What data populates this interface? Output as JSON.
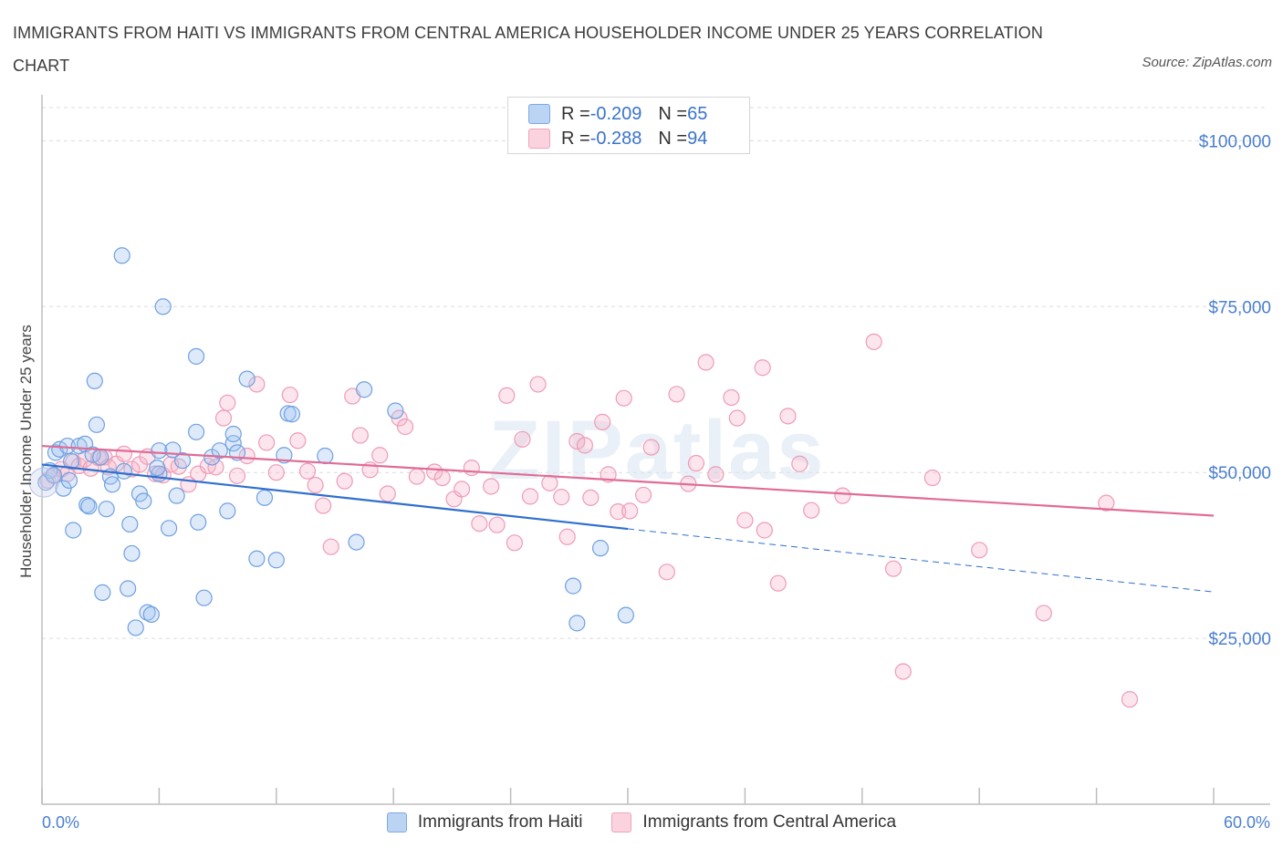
{
  "title": "IMMIGRANTS FROM HAITI VS IMMIGRANTS FROM CENTRAL AMERICA HOUSEHOLDER INCOME UNDER 25 YEARS CORRELATION CHART",
  "source": "Source: ZipAtlas.com",
  "watermark": "ZIPatlas",
  "legend_stats": [
    {
      "r_label": "R = ",
      "r_value": "-0.209",
      "n_label": "N = ",
      "n_value": "65",
      "color": "#a9c8f0"
    },
    {
      "r_label": "R = ",
      "r_value": "-0.288",
      "n_label": "N = ",
      "n_value": "94",
      "color": "#f6bccd"
    }
  ],
  "colors": {
    "haiti": "#6fa3e6",
    "central_america": "#ef8fae",
    "haiti_line": "#2f6fcf",
    "ca_line": "#e06c96",
    "tick_label": "#4a7fd0"
  },
  "chart_data": {
    "type": "scatter",
    "title": "IMMIGRANTS FROM HAITI VS IMMIGRANTS FROM CENTRAL AMERICA HOUSEHOLDER INCOME UNDER 25 YEARS CORRELATION CHART",
    "xlabel": "",
    "ylabel": "Householder Income Under 25 years",
    "xlim": [
      0,
      60
    ],
    "ylim": [
      0,
      105000
    ],
    "x_tick_labels": [
      "0.0%",
      "60.0%"
    ],
    "y_ticks": [
      25000,
      50000,
      75000,
      100000
    ],
    "y_tick_labels": [
      "$25,000",
      "$50,000",
      "$75,000",
      "$100,000"
    ],
    "grid": true,
    "legend_position": "bottom",
    "series": [
      {
        "name": "Immigrants from Haiti",
        "r": -0.209,
        "n": 65,
        "trend": {
          "x": [
            0,
            30
          ],
          "y": [
            51200,
            41500
          ]
        },
        "trend_dashed": {
          "x": [
            30,
            60
          ],
          "y": [
            41500,
            32000
          ]
        },
        "points": [
          [
            0.2,
            48500
          ],
          [
            0.4,
            50300
          ],
          [
            0.7,
            53000
          ],
          [
            0.9,
            53500
          ],
          [
            1.1,
            47600
          ],
          [
            1.3,
            54000
          ],
          [
            1.5,
            51700
          ],
          [
            1.9,
            54000
          ],
          [
            1.6,
            41300
          ],
          [
            2.2,
            54300
          ],
          [
            2.3,
            45100
          ],
          [
            2.4,
            44900
          ],
          [
            2.6,
            52700
          ],
          [
            2.7,
            63800
          ],
          [
            2.8,
            57200
          ],
          [
            3.0,
            52300
          ],
          [
            3.1,
            31900
          ],
          [
            3.3,
            44500
          ],
          [
            3.5,
            49400
          ],
          [
            3.6,
            48200
          ],
          [
            4.1,
            82700
          ],
          [
            4.2,
            50200
          ],
          [
            4.4,
            32500
          ],
          [
            4.5,
            42200
          ],
          [
            4.6,
            37800
          ],
          [
            4.8,
            26600
          ],
          [
            5.0,
            46800
          ],
          [
            5.2,
            45700
          ],
          [
            5.4,
            28900
          ],
          [
            5.6,
            28600
          ],
          [
            6.0,
            53300
          ],
          [
            6.0,
            49800
          ],
          [
            6.2,
            75000
          ],
          [
            6.5,
            41600
          ],
          [
            6.9,
            46500
          ],
          [
            7.2,
            51800
          ],
          [
            7.9,
            56100
          ],
          [
            7.9,
            67500
          ],
          [
            8.0,
            42500
          ],
          [
            8.3,
            31100
          ],
          [
            8.7,
            52300
          ],
          [
            9.1,
            53300
          ],
          [
            9.5,
            44200
          ],
          [
            9.8,
            54400
          ],
          [
            9.8,
            55800
          ],
          [
            10.0,
            53000
          ],
          [
            10.5,
            64100
          ],
          [
            11.0,
            37000
          ],
          [
            11.4,
            46200
          ],
          [
            12.0,
            36800
          ],
          [
            12.4,
            52600
          ],
          [
            12.6,
            58900
          ],
          [
            12.8,
            58800
          ],
          [
            14.5,
            52500
          ],
          [
            16.1,
            39500
          ],
          [
            16.5,
            62500
          ],
          [
            18.1,
            59300
          ],
          [
            27.2,
            32900
          ],
          [
            27.4,
            27300
          ],
          [
            28.6,
            38600
          ],
          [
            29.9,
            28500
          ],
          [
            0.6,
            49600
          ],
          [
            1.4,
            48800
          ],
          [
            5.9,
            50700
          ],
          [
            6.7,
            53400
          ]
        ]
      },
      {
        "name": "Immigrants from Central America",
        "r": -0.288,
        "n": 94,
        "trend": {
          "x": [
            0,
            60
          ],
          "y": [
            54000,
            43500
          ]
        },
        "points": [
          [
            0.3,
            48800
          ],
          [
            0.6,
            49500
          ],
          [
            1.0,
            50500
          ],
          [
            1.3,
            49800
          ],
          [
            1.6,
            51600
          ],
          [
            1.9,
            51000
          ],
          [
            2.2,
            52000
          ],
          [
            2.5,
            50600
          ],
          [
            2.9,
            52200
          ],
          [
            3.2,
            52300
          ],
          [
            3.4,
            50800
          ],
          [
            3.8,
            51300
          ],
          [
            4.2,
            52800
          ],
          [
            4.6,
            50500
          ],
          [
            5.0,
            51200
          ],
          [
            5.4,
            52400
          ],
          [
            5.8,
            49800
          ],
          [
            6.2,
            49600
          ],
          [
            6.6,
            51200
          ],
          [
            7.0,
            50900
          ],
          [
            7.5,
            48200
          ],
          [
            8.0,
            49800
          ],
          [
            8.5,
            51000
          ],
          [
            8.9,
            50800
          ],
          [
            9.3,
            58200
          ],
          [
            9.5,
            60500
          ],
          [
            10.0,
            49500
          ],
          [
            10.5,
            52500
          ],
          [
            11.0,
            63300
          ],
          [
            11.5,
            54500
          ],
          [
            12.0,
            50000
          ],
          [
            12.7,
            61700
          ],
          [
            13.1,
            54800
          ],
          [
            13.6,
            50200
          ],
          [
            14.0,
            48100
          ],
          [
            14.4,
            45000
          ],
          [
            14.8,
            38800
          ],
          [
            15.5,
            48700
          ],
          [
            15.9,
            61500
          ],
          [
            16.3,
            55600
          ],
          [
            16.8,
            50400
          ],
          [
            17.3,
            52600
          ],
          [
            17.7,
            46800
          ],
          [
            18.3,
            58200
          ],
          [
            18.6,
            56900
          ],
          [
            19.2,
            49400
          ],
          [
            20.1,
            50100
          ],
          [
            20.5,
            49200
          ],
          [
            21.1,
            46000
          ],
          [
            21.5,
            47500
          ],
          [
            22.0,
            50700
          ],
          [
            22.4,
            42300
          ],
          [
            23.0,
            47900
          ],
          [
            23.3,
            42100
          ],
          [
            23.8,
            61600
          ],
          [
            24.2,
            39400
          ],
          [
            24.6,
            55000
          ],
          [
            25.0,
            46400
          ],
          [
            25.4,
            63300
          ],
          [
            26.0,
            48400
          ],
          [
            26.6,
            46300
          ],
          [
            26.9,
            40300
          ],
          [
            27.4,
            54700
          ],
          [
            27.8,
            54100
          ],
          [
            28.1,
            46200
          ],
          [
            28.7,
            57600
          ],
          [
            29.0,
            49700
          ],
          [
            29.5,
            44100
          ],
          [
            29.8,
            61200
          ],
          [
            30.1,
            44200
          ],
          [
            30.8,
            46600
          ],
          [
            31.2,
            53800
          ],
          [
            32.0,
            35000
          ],
          [
            32.5,
            61800
          ],
          [
            33.1,
            48300
          ],
          [
            33.5,
            51400
          ],
          [
            34.0,
            66600
          ],
          [
            34.5,
            49700
          ],
          [
            35.3,
            61300
          ],
          [
            35.6,
            58200
          ],
          [
            36.0,
            42800
          ],
          [
            36.9,
            65800
          ],
          [
            37.0,
            41300
          ],
          [
            37.7,
            33300
          ],
          [
            38.2,
            58500
          ],
          [
            38.8,
            51300
          ],
          [
            39.4,
            44300
          ],
          [
            41.0,
            46500
          ],
          [
            42.6,
            69700
          ],
          [
            43.6,
            35500
          ],
          [
            44.1,
            20000
          ],
          [
            45.6,
            49200
          ],
          [
            48.0,
            38300
          ],
          [
            51.3,
            28800
          ]
        ]
      }
    ]
  },
  "extra_outlier": {
    "x": 55.7,
    "y": 15800
  },
  "extra_outlier_2": {
    "x": 54.5,
    "y": 45400
  }
}
